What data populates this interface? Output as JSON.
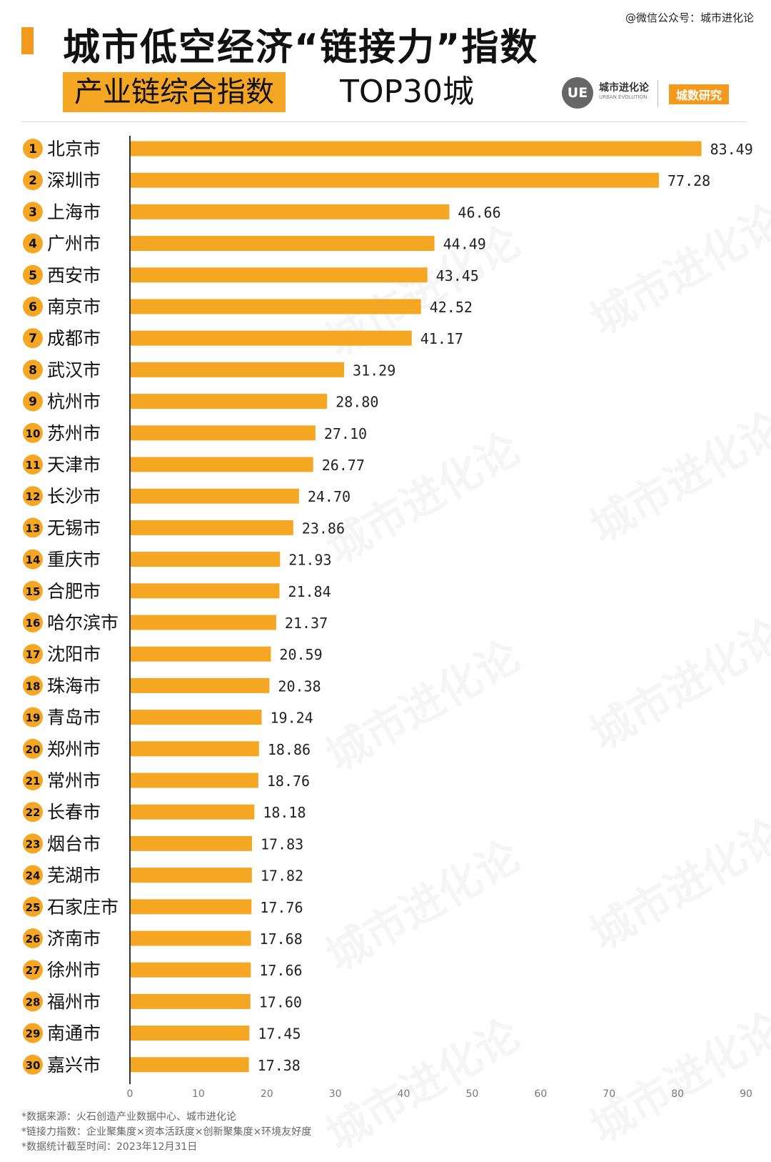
{
  "header": {
    "source_mark": "@微信公众号：城市进化论",
    "title": "城市低空经济“链接力”指数",
    "subtitle_highlight": "产业链综合指数",
    "subtitle_tail": "TOP30城",
    "logo_mark": "UE",
    "logo_name": "城市进化论",
    "logo_en": "URBAN EVOLUTION",
    "logo_tag": "城数研究"
  },
  "watermark": {
    "cn": "城市进化论",
    "en": "URBAN EVOLUTION"
  },
  "colors": {
    "bar": "#f5a623",
    "rank_badge": "#f5a623",
    "axis": "#333333"
  },
  "chart_data": {
    "type": "bar",
    "orientation": "horizontal",
    "categories": [
      "北京市",
      "深圳市",
      "上海市",
      "广州市",
      "西安市",
      "南京市",
      "成都市",
      "武汉市",
      "杭州市",
      "苏州市",
      "天津市",
      "长沙市",
      "无锡市",
      "重庆市",
      "合肥市",
      "哈尔滨市",
      "沈阳市",
      "珠海市",
      "青岛市",
      "郑州市",
      "常州市",
      "长春市",
      "烟台市",
      "芜湖市",
      "石家庄市",
      "济南市",
      "徐州市",
      "福州市",
      "南通市",
      "嘉兴市"
    ],
    "ranks": [
      "1",
      "2",
      "3",
      "4",
      "5",
      "6",
      "7",
      "8",
      "9",
      "10",
      "11",
      "12",
      "13",
      "14",
      "15",
      "16",
      "17",
      "18",
      "19",
      "20",
      "21",
      "22",
      "23",
      "24",
      "25",
      "26",
      "27",
      "28",
      "29",
      "30"
    ],
    "values": [
      83.49,
      77.28,
      46.66,
      44.49,
      43.45,
      42.52,
      41.17,
      31.29,
      28.8,
      27.1,
      26.77,
      24.7,
      23.86,
      21.93,
      21.84,
      21.37,
      20.59,
      20.38,
      19.24,
      18.86,
      18.76,
      18.18,
      17.83,
      17.82,
      17.76,
      17.68,
      17.66,
      17.6,
      17.45,
      17.38
    ],
    "value_labels": [
      "83.49",
      "77.28",
      "46.66",
      "44.49",
      "43.45",
      "42.52",
      "41.17",
      "31.29",
      "28.80",
      "27.10",
      "26.77",
      "24.70",
      "23.86",
      "21.93",
      "21.84",
      "21.37",
      "20.59",
      "20.38",
      "19.24",
      "18.86",
      "18.76",
      "18.18",
      "17.83",
      "17.82",
      "17.76",
      "17.68",
      "17.66",
      "17.60",
      "17.45",
      "17.38"
    ],
    "xlim": [
      0,
      90
    ],
    "xticks": [
      "0",
      "10",
      "20",
      "30",
      "40",
      "50",
      "60",
      "70",
      "80",
      "90"
    ],
    "grid": false,
    "title": "",
    "xlabel": "",
    "ylabel": ""
  },
  "notes": [
    "*数据来源：火石创造产业数据中心、城市进化论",
    "*链接力指数：企业聚集度×资本活跃度×创新聚集度×环境友好度",
    "*数据统计截至时间：2023年12月31日"
  ]
}
